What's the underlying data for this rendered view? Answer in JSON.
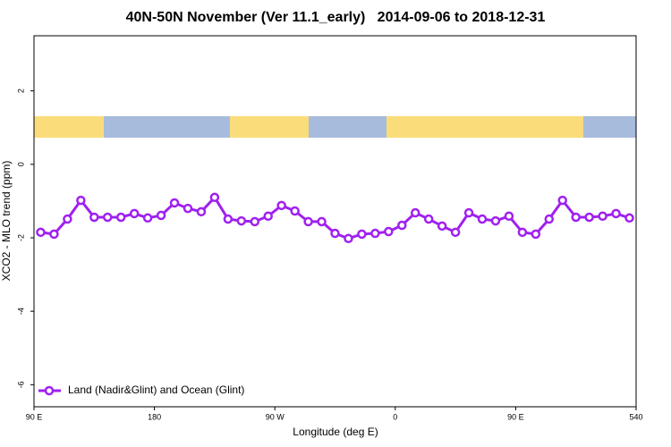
{
  "chart_data": {
    "type": "line",
    "title": "40N-50N November (Ver 11.1_early)   2014-09-06 to 2018-12-31",
    "x_label": "Longitude (deg E)",
    "y_label": "XCO2 - MLO trend (ppm)",
    "x": [
      95,
      105,
      115,
      125,
      135,
      145,
      155,
      165,
      175,
      185,
      195,
      205,
      215,
      225,
      235,
      245,
      255,
      265,
      275,
      285,
      295,
      305,
      315,
      325,
      335,
      345,
      355,
      365,
      375,
      385,
      395,
      405,
      415,
      425,
      435,
      445,
      455,
      465,
      475,
      485,
      495,
      505,
      515,
      525,
      535
    ],
    "series": [
      {
        "name": "Land (Nadir&Glint) and Ocean (Glint)",
        "color": "#a020f0",
        "values": [
          -1.85,
          -1.9,
          -1.49,
          -0.98,
          -1.44,
          -1.44,
          -1.44,
          -1.34,
          -1.46,
          -1.39,
          -1.05,
          -1.2,
          -1.29,
          -0.9,
          -1.49,
          -1.54,
          -1.56,
          -1.41,
          -1.12,
          -1.27,
          -1.56,
          -1.56,
          -1.88,
          -2.02,
          -1.9,
          -1.88,
          -1.83,
          -1.66,
          -1.32,
          -1.49,
          -1.68,
          -1.85,
          -1.32,
          -1.49,
          -1.54,
          -1.41,
          -1.85,
          -1.9,
          -1.49,
          -0.98,
          -1.44,
          -1.44,
          -1.41,
          -1.34,
          -1.46
        ]
      }
    ],
    "xlim": [
      90,
      540
    ],
    "xticks": [
      {
        "value": 90,
        "label": "90 E"
      },
      180,
      {
        "value": 270,
        "label": "90 W"
      },
      {
        "value": 360,
        "label": "0"
      },
      {
        "value": 450,
        "label": "90 E"
      },
      540
    ],
    "ylim": [
      -6.6,
      3.5
    ],
    "yticks": [
      -6,
      -4,
      -2,
      0,
      2
    ],
    "legend": "bottom-left"
  }
}
